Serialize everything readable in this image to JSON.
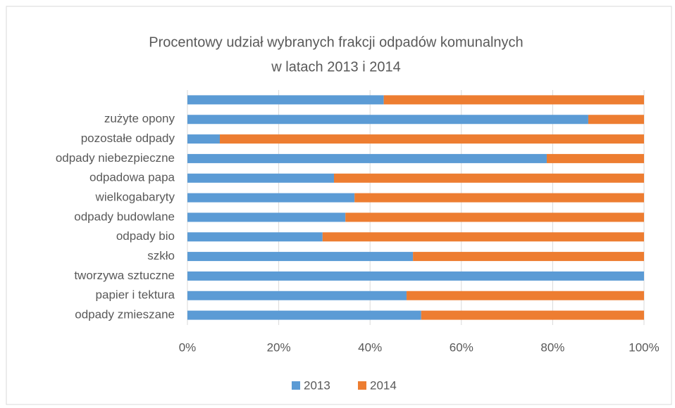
{
  "chart_data": {
    "type": "bar",
    "orientation": "horizontal",
    "stacked": true,
    "title": [
      "Procentowy udział  wybranych frakcji odpadów komunalnych",
      "w latach 2013 i 2014"
    ],
    "categories": [
      null,
      "zużyte opony",
      "pozostałe odpady",
      "odpady niebezpieczne",
      "odpadowa papa",
      "wielkogabaryty",
      "odpady budowlane",
      "odpady bio",
      "szkło",
      "tworzywa sztuczne",
      "papier i tektura",
      "odpady zmieszane"
    ],
    "series": [
      {
        "name": "2013",
        "color": "#5b9bd5",
        "values": [
          43,
          87.8,
          7.1,
          78.7,
          32.1,
          36.6,
          34.6,
          29.6,
          49.4,
          100,
          48,
          51.2
        ]
      },
      {
        "name": "2014",
        "color": "#ed7d31",
        "values": [
          57,
          12.2,
          92.9,
          21.3,
          67.9,
          63.4,
          65.4,
          70.4,
          50.6,
          0,
          52,
          48.8
        ]
      }
    ],
    "xlim": [
      0,
      100
    ],
    "xticks": [
      {
        "value": 0,
        "label": "0%"
      },
      {
        "value": 20,
        "label": "20%"
      },
      {
        "value": 40,
        "label": "40%"
      },
      {
        "value": 60,
        "label": "60%"
      },
      {
        "value": 80,
        "label": "80%"
      },
      {
        "value": 100,
        "label": "100%"
      }
    ],
    "grid": true,
    "legend": "bottom"
  }
}
